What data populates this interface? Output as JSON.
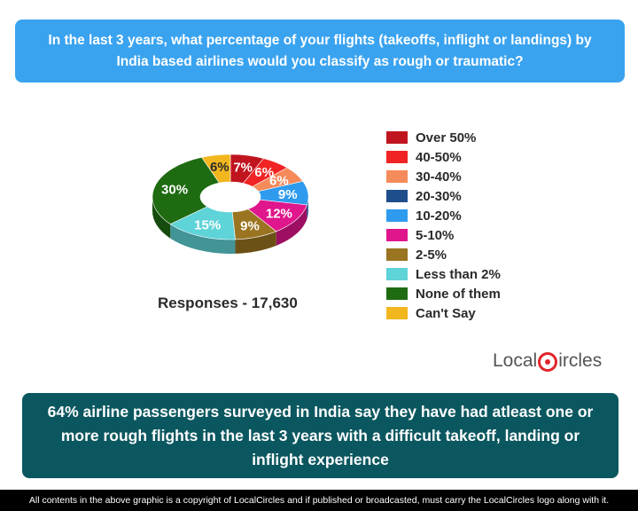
{
  "header": {
    "question": "In the last 3 years, what percentage of your flights (takeoffs, inflight or landings) by India based airlines would you classify as rough or traumatic?"
  },
  "chart_data": {
    "type": "pie",
    "style": "3d-donut",
    "legend_position": "right",
    "categories": [
      "Over 50%",
      "40-50%",
      "30-40%",
      "20-30%",
      "10-20%",
      "5-10%",
      "2-5%",
      "Less than 2%",
      "None of them",
      "Can't Say"
    ],
    "values": [
      7,
      6,
      6,
      0,
      9,
      12,
      9,
      15,
      30,
      6
    ],
    "data_labels": [
      "7%",
      "6%",
      "6%",
      "",
      "9%",
      "12%",
      "9%",
      "15%",
      "30%",
      "6%"
    ],
    "colors": [
      "#c0151f",
      "#f02424",
      "#f58a5a",
      "#1f4e8c",
      "#2f9bef",
      "#e0168c",
      "#9a7420",
      "#5ed3d8",
      "#1e6b12",
      "#f2b61f"
    ]
  },
  "responses": "Responses - 17,630",
  "logo": {
    "part1": "Local",
    "part2": "ircles"
  },
  "summary": "64% airline passengers surveyed in India say they have had atleast one or more rough flights in the last 3 years with a difficult takeoff, landing or inflight experience",
  "footer": "All contents in the above graphic is a copyright of LocalCircles and if published or broadcasted, must carry the LocalCircles logo along with it."
}
